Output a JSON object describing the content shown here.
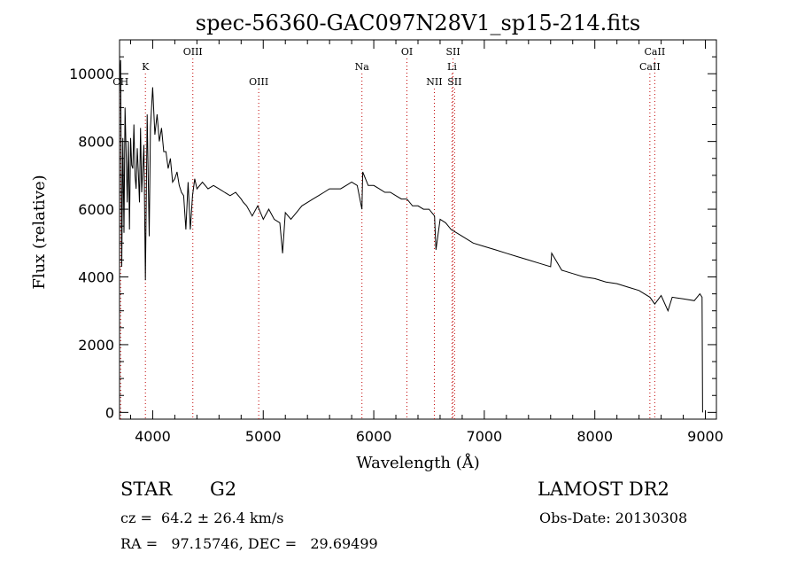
{
  "chart_data": {
    "type": "line",
    "title": "spec-56360-GAC097N28V1_sp15-214.fits",
    "xlabel": "Wavelength (Å)",
    "ylabel": "Flux (relative)",
    "xlim": [
      3700,
      9100
    ],
    "ylim": [
      -200,
      11000
    ],
    "xticks": [
      4000,
      5000,
      6000,
      7000,
      8000,
      9000
    ],
    "yticks": [
      0,
      2000,
      4000,
      6000,
      8000,
      10000
    ],
    "grid": false,
    "spectral_lines": [
      {
        "label": "CH",
        "x": 3710,
        "row": 3
      },
      {
        "label": "K",
        "x": 3934,
        "row": 2
      },
      {
        "label": "OIII",
        "x": 4363,
        "row": 1
      },
      {
        "label": "OIII",
        "x": 4959,
        "row": 3
      },
      {
        "label": "Na",
        "x": 5893,
        "row": 2
      },
      {
        "label": "OI",
        "x": 6300,
        "row": 1
      },
      {
        "label": "NII",
        "x": 6548,
        "row": 3
      },
      {
        "label": "SII",
        "x": 6717,
        "row": 1
      },
      {
        "label": "Li",
        "x": 6708,
        "row": 2
      },
      {
        "label": "SII",
        "x": 6731,
        "row": 3
      },
      {
        "label": "CaII",
        "x": 8542,
        "row": 1
      },
      {
        "label": "CaII",
        "x": 8498,
        "row": 2
      }
    ],
    "series": [
      {
        "x": [
          3700,
          3710,
          3720,
          3730,
          3740,
          3750,
          3760,
          3770,
          3780,
          3790,
          3800,
          3810,
          3820,
          3830,
          3840,
          3850,
          3860,
          3870,
          3880,
          3890,
          3900,
          3920,
          3934,
          3950,
          3968,
          3980,
          4000,
          4020,
          4040,
          4060,
          4080,
          4100,
          4120,
          4140,
          4160,
          4180,
          4200,
          4220,
          4240,
          4260,
          4280,
          4300,
          4320,
          4340,
          4360,
          4380,
          4400,
          4450,
          4500,
          4550,
          4600,
          4650,
          4700,
          4750,
          4800,
          4820,
          4850,
          4900,
          4950,
          5000,
          5050,
          5100,
          5150,
          5175,
          5200,
          5250,
          5300,
          5350,
          5400,
          5450,
          5500,
          5550,
          5600,
          5650,
          5700,
          5750,
          5800,
          5850,
          5893,
          5900,
          5950,
          6000,
          6050,
          6100,
          6150,
          6200,
          6250,
          6300,
          6350,
          6400,
          6450,
          6500,
          6550,
          6563,
          6600,
          6650,
          6700,
          6750,
          6800,
          6900,
          7000,
          7100,
          7200,
          7300,
          7400,
          7500,
          7600,
          7610,
          7700,
          7800,
          7900,
          8000,
          8100,
          8200,
          8300,
          8400,
          8498,
          8542,
          8600,
          8662,
          8700,
          8800,
          8900,
          8950,
          8970,
          8975
        ],
        "y": [
          9500,
          10400,
          4300,
          8100,
          5300,
          9000,
          7600,
          6200,
          8000,
          5400,
          8100,
          7300,
          7200,
          8500,
          7000,
          6600,
          7800,
          7100,
          6200,
          8400,
          6500,
          7900,
          3900,
          8800,
          5200,
          8400,
          9600,
          8200,
          8800,
          8000,
          8400,
          7700,
          7700,
          7200,
          7500,
          6800,
          6900,
          7100,
          6700,
          6500,
          6400,
          5400,
          6800,
          5400,
          6400,
          6900,
          6600,
          6800,
          6600,
          6700,
          6600,
          6500,
          6400,
          6500,
          6300,
          6200,
          6100,
          5800,
          6100,
          5700,
          6000,
          5700,
          5600,
          4700,
          5900,
          5700,
          5900,
          6100,
          6200,
          6300,
          6400,
          6500,
          6600,
          6600,
          6600,
          6700,
          6800,
          6700,
          6000,
          7100,
          6700,
          6700,
          6600,
          6500,
          6500,
          6400,
          6300,
          6300,
          6100,
          6100,
          6000,
          6000,
          5800,
          4800,
          5700,
          5600,
          5400,
          5300,
          5200,
          5000,
          4900,
          4800,
          4700,
          4600,
          4500,
          4400,
          4300,
          4700,
          4200,
          4100,
          4000,
          3950,
          3850,
          3800,
          3700,
          3600,
          3400,
          3200,
          3450,
          3000,
          3400,
          3350,
          3300,
          3500,
          3400,
          0
        ]
      }
    ]
  },
  "footer": {
    "object_type": "STAR",
    "subclass": "G2",
    "survey": "LAMOST DR2",
    "redshift": "cz =  64.2 ± 26.4 km/s",
    "obs_date": "Obs-Date: 20130308",
    "coords": "RA =   97.15746, DEC =   29.69499"
  }
}
